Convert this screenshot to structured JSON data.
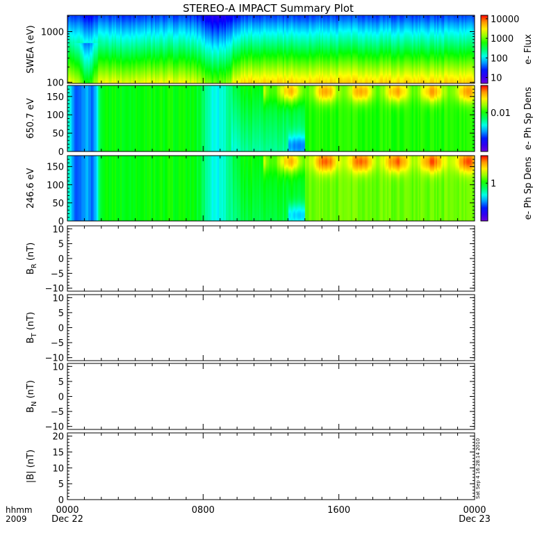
{
  "chart_data": {
    "title": "STEREO-A IMPACT Summary Plot",
    "type": "heatmap",
    "time_axis": {
      "row1_label": "hhmm",
      "row2_label": "2009",
      "ticks": [
        {
          "hours": 0,
          "label": "0000",
          "date": "Dec 22"
        },
        {
          "hours": 8,
          "label": "0800",
          "date": ""
        },
        {
          "hours": 16,
          "label": "1600",
          "date": ""
        },
        {
          "hours": 24,
          "label": "0000",
          "date": "Dec 23"
        }
      ],
      "range_hours": [
        0,
        24
      ]
    },
    "side_stamp": "Sat Sep  4 16:28:14 2010",
    "panels": [
      {
        "ylabel": "SWEA (eV)",
        "type": "heatmap",
        "yscale": "log",
        "ylim": [
          95,
          2100
        ],
        "yticks": [
          100,
          1000
        ],
        "yticklabels": [
          "100",
          "1000"
        ],
        "colorbar": {
          "label": "e- Flux",
          "scale": "log",
          "range": [
            5,
            15000
          ],
          "ticks": [
            10,
            100,
            1000,
            10000
          ],
          "ticklabels": [
            "10",
            "100",
            "1000",
            "10000"
          ]
        }
      },
      {
        "ylabel": "650.7 eV",
        "type": "heatmap",
        "yscale": "linear",
        "ylim": [
          0,
          180
        ],
        "yticks": [
          0,
          50,
          100,
          150
        ],
        "yticklabels": [
          "0",
          "50",
          "100",
          "150"
        ],
        "colorbar": {
          "label": "e- Ph Sp Dens",
          "scale": "log",
          "range": [
            0.001,
            0.05
          ],
          "ticks": [
            0.01
          ],
          "ticklabels": [
            "0.01"
          ]
        }
      },
      {
        "ylabel": "246.6 eV",
        "type": "heatmap",
        "yscale": "linear",
        "ylim": [
          0,
          180
        ],
        "yticks": [
          0,
          50,
          100,
          150
        ],
        "yticklabels": [
          "0",
          "50",
          "100",
          "150"
        ],
        "colorbar": {
          "label": "e- Ph Sp Dens",
          "scale": "log",
          "range": [
            0.15,
            4
          ],
          "ticks": [
            1
          ],
          "ticklabels": [
            "1"
          ]
        }
      },
      {
        "ylabel_main": "B",
        "ylabel_sub": "R",
        "ylabel_unit": " (nT)",
        "type": "line",
        "yscale": "linear",
        "ylim": [
          -11,
          11
        ],
        "yticks": [
          -10,
          -5,
          0,
          5,
          10
        ],
        "yticklabels": [
          "−10",
          "−5",
          "0",
          "5",
          "10"
        ],
        "series": []
      },
      {
        "ylabel_main": "B",
        "ylabel_sub": "T",
        "ylabel_unit": " (nT)",
        "type": "line",
        "yscale": "linear",
        "ylim": [
          -11,
          11
        ],
        "yticks": [
          -10,
          -5,
          0,
          5,
          10
        ],
        "yticklabels": [
          "−10",
          "−5",
          "0",
          "5",
          "10"
        ],
        "series": []
      },
      {
        "ylabel_main": "B",
        "ylabel_sub": "N",
        "ylabel_unit": " (nT)",
        "type": "line",
        "yscale": "linear",
        "ylim": [
          -11,
          11
        ],
        "yticks": [
          -10,
          -5,
          0,
          5,
          10
        ],
        "yticklabels": [
          "−10",
          "−5",
          "0",
          "5",
          "10"
        ],
        "series": []
      },
      {
        "ylabel_main": "|B| (nT)",
        "ylabel_sub": "",
        "ylabel_unit": "",
        "type": "line",
        "yscale": "linear",
        "ylim": [
          0,
          21
        ],
        "yticks": [
          0,
          5,
          10,
          15,
          20
        ],
        "yticklabels": [
          "0",
          "5",
          "10",
          "15",
          "20"
        ],
        "series": []
      }
    ]
  }
}
